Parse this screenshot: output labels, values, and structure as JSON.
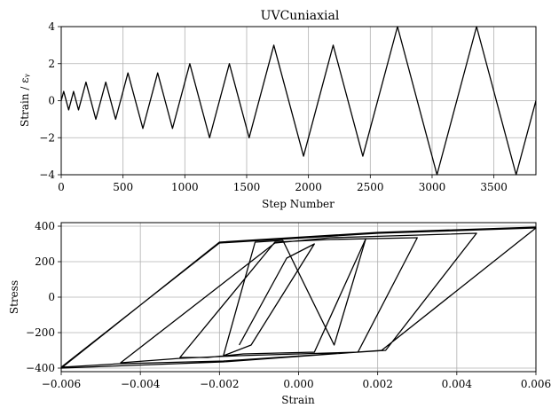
{
  "chart_data": [
    {
      "type": "line",
      "title": "UVCuniaxial",
      "xlabel": "Step Number",
      "ylabel": "Strain / εᵧ",
      "xlim": [
        0,
        3840
      ],
      "ylim": [
        -4,
        4
      ],
      "xticks": [
        0,
        500,
        1000,
        1500,
        2000,
        2500,
        3000,
        3500
      ],
      "xtick_labels": [
        "0",
        "500",
        "1000",
        "1500",
        "2000",
        "2500",
        "3000",
        "3500"
      ],
      "yticks": [
        -4,
        -2,
        0,
        2,
        4
      ],
      "ytick_labels": [
        "−4",
        "−2",
        "0",
        "2",
        "4"
      ],
      "grid": true,
      "series": [
        {
          "x": [
            0,
            20,
            60,
            100,
            140,
            200,
            280,
            360,
            440,
            540,
            660,
            780,
            900,
            1040,
            1200,
            1360,
            1520,
            1720,
            1960,
            2200,
            2440,
            2720,
            3040,
            3360,
            3680,
            3840
          ],
          "y": [
            0,
            0.5,
            -0.5,
            0.5,
            -0.5,
            1,
            -1,
            1,
            -1,
            1.5,
            -1.5,
            1.5,
            -1.5,
            2,
            -2,
            2,
            -2,
            3,
            -3,
            3,
            -3,
            4,
            -4,
            4,
            -4,
            0
          ]
        }
      ]
    },
    {
      "type": "line",
      "title": "",
      "xlabel": "Strain",
      "ylabel": "Stress",
      "xlim": [
        -0.006,
        0.006
      ],
      "ylim": [
        -420,
        420
      ],
      "xticks": [
        -0.006,
        -0.004,
        -0.002,
        0,
        0.002,
        0.004,
        0.006
      ],
      "xtick_labels": [
        "−0.006",
        "−0.004",
        "−0.002",
        "0.000",
        "0.002",
        "0.004",
        "0.006"
      ],
      "yticks": [
        -400,
        -200,
        0,
        200,
        400
      ],
      "ytick_labels": [
        "−400",
        "−200",
        "0",
        "200",
        "400"
      ],
      "grid": true,
      "series": [
        {
          "x": [
            -0.0015,
            -0.0003,
            0.0004,
            -0.0012,
            -0.0019,
            -0.0011,
            -0.0004,
            0.0009,
            0.0017,
            0.0004,
            -0.0014,
            -0.0023,
            -0.003,
            -0.0006,
            0.0008,
            0.003,
            0.0015,
            -0.0015,
            -0.003,
            -0.0045,
            -0.0006,
            0.0008,
            0.0045,
            0.0022,
            -0.0019,
            -0.0045,
            -0.006,
            -0.002,
            0.002,
            0.006,
            0.0021,
            -0.0019,
            -0.006,
            -0.002,
            0.002,
            0.006
          ],
          "y": [
            -270,
            220,
            300,
            -270,
            -330,
            310,
            320,
            -270,
            330,
            -310,
            -320,
            -340,
            -340,
            310,
            325,
            335,
            -310,
            -330,
            -345,
            -370,
            305,
            335,
            360,
            -300,
            -360,
            -375,
            -395,
            305,
            360,
            390,
            -300,
            -365,
            -400,
            310,
            365,
            395
          ]
        }
      ]
    }
  ]
}
